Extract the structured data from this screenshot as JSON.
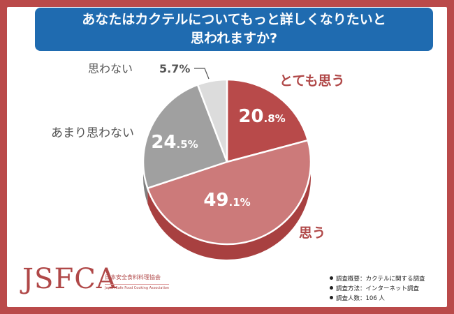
{
  "title": {
    "line1": "あなたはカクテルについてもっと詳しくなりたいと",
    "line2": "思われますか?"
  },
  "chart_data": {
    "type": "pie",
    "title": "あなたはカクテルについてもっと詳しくなりたいと思われますか?",
    "slices": [
      {
        "label": "とても思う",
        "value": 20.8,
        "int": "20",
        "dec": ".8%",
        "color": "#b84a4a",
        "depth_color": "#9c3e3e",
        "label_color": "#b04848"
      },
      {
        "label": "思う",
        "value": 49.1,
        "int": "49",
        "dec": ".1%",
        "color": "#cc7a7a",
        "depth_color": "#a84040",
        "label_color": "#b04848"
      },
      {
        "label": "あまり思わない",
        "value": 24.5,
        "int": "24",
        "dec": ".5%",
        "color": "#a0a0a0",
        "depth_color": "#7e7e7e",
        "label_color": "#555555"
      },
      {
        "label": "思わない",
        "value": 5.7,
        "int": "",
        "dec": "5.7%",
        "color": "#dcdcdc",
        "depth_color": "#b4b4b4",
        "label_color": "#555555"
      }
    ]
  },
  "logo": {
    "mark": "JSFCA",
    "jp": "日本安全食料料理協会",
    "en": "Japan Safe Food Cooking Association"
  },
  "notes": [
    "調査概要：カクテルに関する調査",
    "調査方法：インターネット調査",
    "調査人数：106 人"
  ]
}
